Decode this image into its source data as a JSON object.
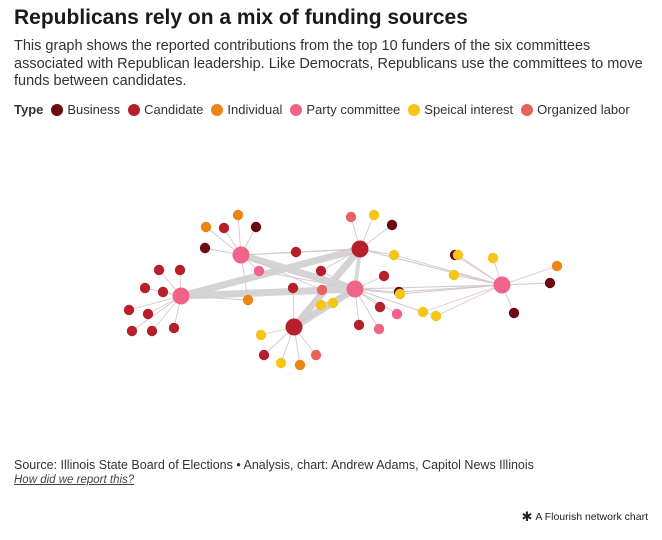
{
  "title": "Republicans rely on a mix of funding sources",
  "subtitle": "This graph shows the reported contributions from the top 10 funders of the six committees associated with Republican leadership. Like Democrats, Republicans use the committees to move funds between candidates.",
  "legend": {
    "title": "Type",
    "items": [
      {
        "label": "Business",
        "color": "#6b0a12"
      },
      {
        "label": "Candidate",
        "color": "#b5202a"
      },
      {
        "label": "Individual",
        "color": "#ee8413"
      },
      {
        "label": "Party committee",
        "color": "#f0648a"
      },
      {
        "label": "Speical interest",
        "color": "#f5c518"
      },
      {
        "label": "Organized labor",
        "color": "#e8635e"
      }
    ]
  },
  "source": "Source: Illinois State Board of Elections • Analysis, chart: Andrew Adams, Capitol News Illinois",
  "method_link": "How did we report this?",
  "credit": "A Flourish network chart",
  "credit_icon": "asterisk-icon",
  "chart_data": {
    "type": "network",
    "title": "Republicans rely on a mix of funding sources",
    "node_types": [
      "Business",
      "Candidate",
      "Individual",
      "Party committee",
      "Speical interest",
      "Organized labor"
    ],
    "hubs": [
      {
        "id": "A",
        "type": "Party committee"
      },
      {
        "id": "B",
        "type": "Party committee"
      },
      {
        "id": "C",
        "type": "Candidate"
      },
      {
        "id": "D",
        "type": "Party committee"
      },
      {
        "id": "E",
        "type": "Candidate"
      },
      {
        "id": "F",
        "type": "Party committee"
      }
    ],
    "funders": [
      {
        "type": "Candidate",
        "hubs": [
          "B"
        ]
      },
      {
        "type": "Candidate",
        "hubs": [
          "B"
        ]
      },
      {
        "type": "Candidate",
        "hubs": [
          "B"
        ]
      },
      {
        "type": "Candidate",
        "hubs": [
          "B"
        ]
      },
      {
        "type": "Candidate",
        "hubs": [
          "B"
        ]
      },
      {
        "type": "Candidate",
        "hubs": [
          "B"
        ]
      },
      {
        "type": "Candidate",
        "hubs": [
          "B"
        ]
      },
      {
        "type": "Candidate",
        "hubs": [
          "B"
        ]
      },
      {
        "type": "Candidate",
        "hubs": [
          "B"
        ]
      },
      {
        "type": "Individual",
        "hubs": [
          "A"
        ]
      },
      {
        "type": "Individual",
        "hubs": [
          "A"
        ]
      },
      {
        "type": "Business",
        "hubs": [
          "A"
        ]
      },
      {
        "type": "Candidate",
        "hubs": [
          "A"
        ]
      },
      {
        "type": "Business",
        "hubs": [
          "A"
        ]
      },
      {
        "type": "Candidate",
        "hubs": [
          "A",
          "C"
        ]
      },
      {
        "type": "Party committee",
        "hubs": [
          "A",
          "D"
        ]
      },
      {
        "type": "Individual",
        "hubs": [
          "A",
          "B"
        ]
      },
      {
        "type": "Organized labor",
        "hubs": [
          "C"
        ]
      },
      {
        "type": "Speical interest",
        "hubs": [
          "C"
        ]
      },
      {
        "type": "Business",
        "hubs": [
          "C"
        ]
      },
      {
        "type": "Speical interest",
        "hubs": [
          "C",
          "F"
        ]
      },
      {
        "type": "Candidate",
        "hubs": [
          "D",
          "C"
        ]
      },
      {
        "type": "Organized labor",
        "hubs": [
          "A",
          "E"
        ]
      },
      {
        "type": "Candidate",
        "hubs": [
          "E"
        ]
      },
      {
        "type": "Speical interest",
        "hubs": [
          "E",
          "D"
        ]
      },
      {
        "type": "Candidate",
        "hubs": [
          "D"
        ]
      },
      {
        "type": "Business",
        "hubs": [
          "D",
          "F"
        ]
      },
      {
        "type": "Speical interest",
        "hubs": [
          "D",
          "F"
        ]
      },
      {
        "type": "Speical interest",
        "hubs": [
          "D",
          "E"
        ]
      },
      {
        "type": "Candidate",
        "hubs": [
          "D"
        ]
      },
      {
        "type": "Party committee",
        "hubs": [
          "D"
        ]
      },
      {
        "type": "Candidate",
        "hubs": [
          "D"
        ]
      },
      {
        "type": "Party committee",
        "hubs": [
          "D"
        ]
      },
      {
        "type": "Speical interest",
        "hubs": [
          "E"
        ]
      },
      {
        "type": "Candidate",
        "hubs": [
          "E"
        ]
      },
      {
        "type": "Speical interest",
        "hubs": [
          "E"
        ]
      },
      {
        "type": "Individual",
        "hubs": [
          "E"
        ]
      },
      {
        "type": "Organized labor",
        "hubs": [
          "E"
        ]
      },
      {
        "type": "Business",
        "hubs": [
          "F"
        ]
      },
      {
        "type": "Speical interest",
        "hubs": [
          "F"
        ]
      },
      {
        "type": "Speical interest",
        "hubs": [
          "F"
        ]
      },
      {
        "type": "Speical interest",
        "hubs": [
          "F"
        ]
      },
      {
        "type": "Individual",
        "hubs": [
          "F"
        ]
      },
      {
        "type": "Business",
        "hubs": [
          "F"
        ]
      },
      {
        "type": "Business",
        "hubs": [
          "F"
        ]
      },
      {
        "type": "Speical interest",
        "hubs": [
          "F",
          "D"
        ]
      },
      {
        "type": "Speical interest",
        "hubs": [
          "F",
          "D"
        ]
      }
    ],
    "hub_links": [
      {
        "source": "B",
        "target": "C",
        "strength": "heavy"
      },
      {
        "source": "B",
        "target": "D",
        "strength": "heavy"
      },
      {
        "source": "A",
        "target": "D",
        "strength": "heavy"
      },
      {
        "source": "E",
        "target": "C",
        "strength": "heavy"
      },
      {
        "source": "E",
        "target": "D",
        "strength": "heavy"
      },
      {
        "source": "C",
        "target": "D",
        "strength": "medium"
      },
      {
        "source": "A",
        "target": "C",
        "strength": "light"
      },
      {
        "source": "C",
        "target": "F",
        "strength": "light"
      },
      {
        "source": "D",
        "target": "F",
        "strength": "light"
      }
    ]
  }
}
